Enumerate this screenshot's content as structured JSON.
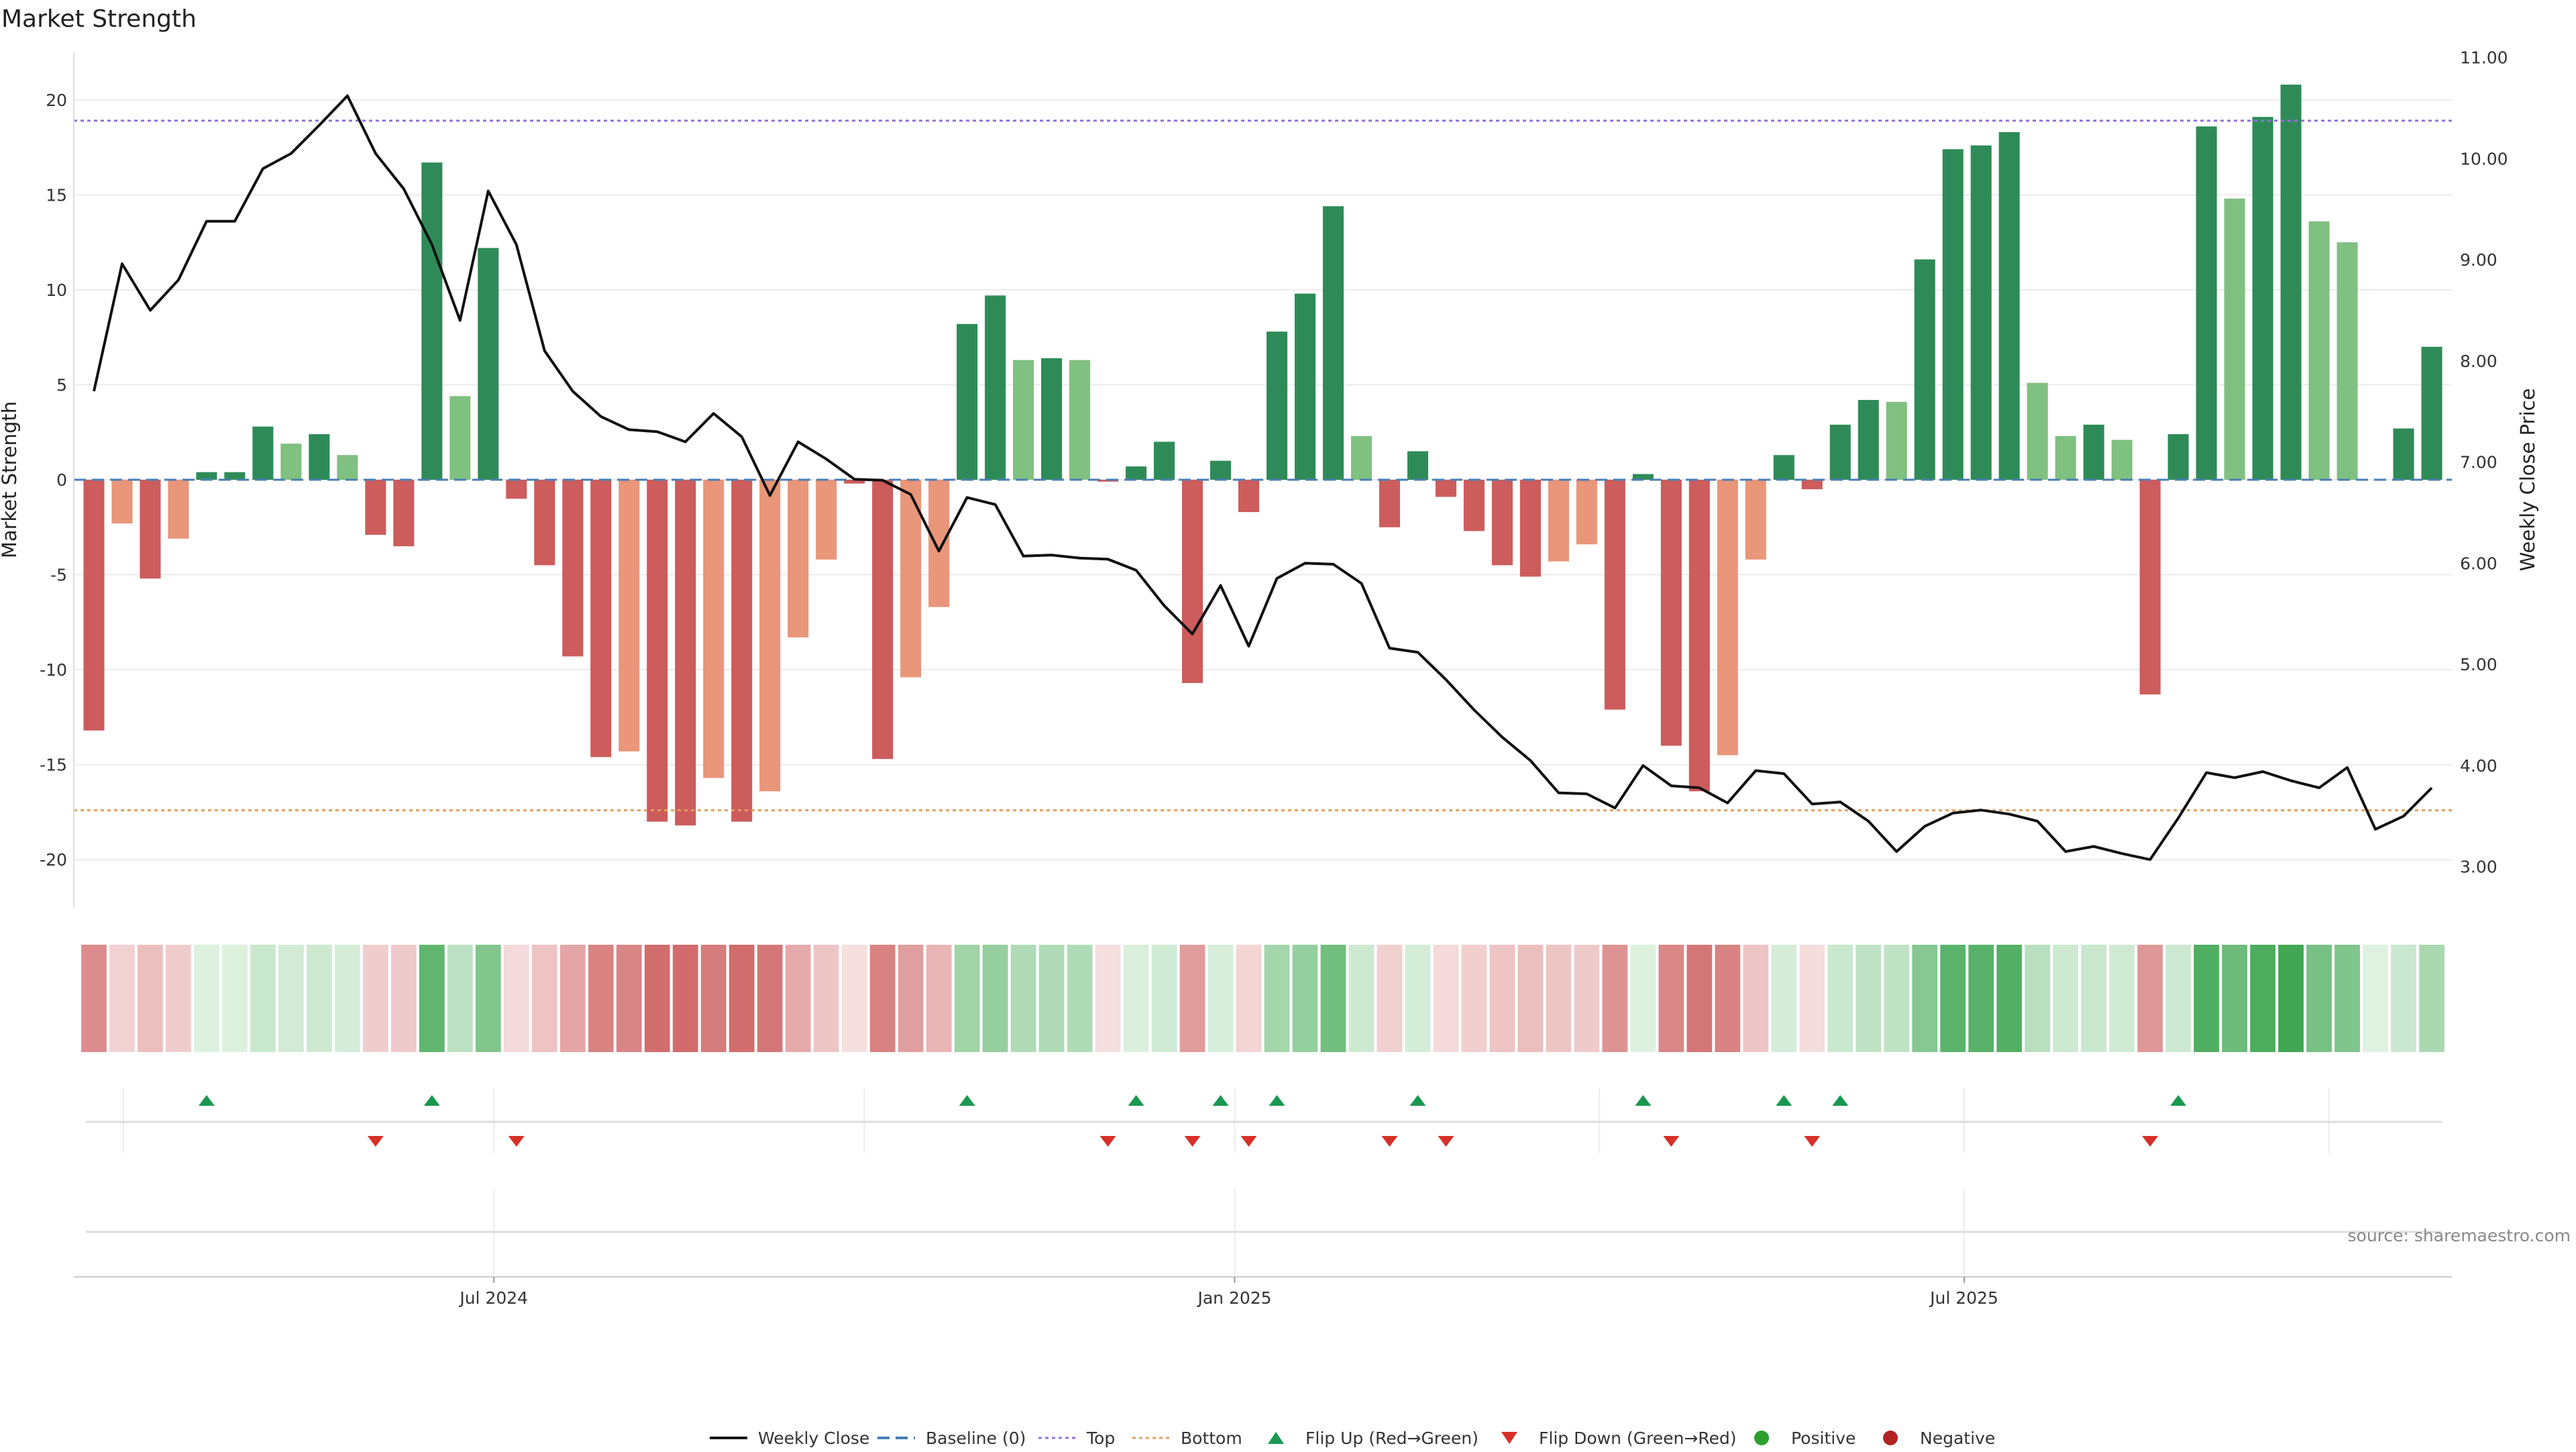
{
  "title": "Market Strength",
  "source": "source: sharemaestro.com",
  "colors": {
    "strong_green": "#2e8b57",
    "light_green": "#80c080",
    "strong_red": "#cd5c5c",
    "light_red": "#e9967a",
    "close_line": "#111111",
    "baseline": "#4a7fb5",
    "top": "#9370db",
    "bottom": "#e0a060",
    "flip_up": "#1a9850",
    "flip_down": "#d73027",
    "positive": "#2ca02c",
    "negative": "#b22222",
    "grid": "#ebebeb"
  },
  "chart_data": {
    "type": "bar",
    "title": "Market Strength",
    "ylabel_left": "Market Strength",
    "ylabel_right": "Weekly Close Price",
    "ylim_left": [
      -22.5,
      22.5
    ],
    "yticks_left": [
      -20,
      -15,
      -10,
      -5,
      0,
      5,
      10,
      15,
      20
    ],
    "ylim_right": [
      2.6,
      11.05
    ],
    "yticks_right": [
      3,
      4,
      5,
      6,
      7,
      8,
      9,
      10,
      11
    ],
    "ytick_labels_right": [
      "3.00",
      "4.00",
      "5.00",
      "6.00",
      "7.00",
      "8.00",
      "9.00",
      "10.00",
      "11.00"
    ],
    "x_tick_labels": [
      "Jul 2024",
      "Jan 2025",
      "Jul 2025"
    ],
    "x_tick_week_index": [
      14.2,
      40.5,
      66.4
    ],
    "top_line": 18.9,
    "bottom_line": -17.4,
    "baseline": 0,
    "weeks": 84,
    "strength": [
      -13.2,
      -2.3,
      -5.2,
      -3.1,
      0.4,
      0.4,
      2.8,
      1.9,
      2.4,
      1.3,
      -2.9,
      -3.5,
      16.7,
      4.4,
      12.2,
      -1.0,
      -4.5,
      -9.3,
      -14.6,
      -14.3,
      -18.0,
      -18.2,
      -15.7,
      -18.0,
      -16.4,
      -8.3,
      -4.2,
      -0.2,
      -14.7,
      -10.4,
      -6.7,
      8.2,
      9.7,
      6.3,
      6.4,
      6.3,
      -0.1,
      0.7,
      2.0,
      -10.7,
      1.0,
      -1.7,
      7.8,
      9.8,
      14.4,
      2.3,
      -2.5,
      1.5,
      -0.9,
      -2.7,
      -4.5,
      -5.1,
      -4.3,
      -3.4,
      -12.1,
      0.3,
      -14.0,
      -16.4,
      -14.5,
      -4.2,
      1.3,
      -0.5,
      2.9,
      4.2,
      4.1,
      11.6,
      17.4,
      17.6,
      18.3,
      5.1,
      2.3,
      2.9,
      2.1,
      -11.3,
      2.4,
      18.6,
      14.8,
      19.1,
      20.8,
      13.6,
      12.5,
      0,
      2.7,
      7.0
    ],
    "strong": [
      1,
      0,
      1,
      0,
      1,
      1,
      1,
      0,
      1,
      0,
      1,
      1,
      1,
      0,
      1,
      1,
      1,
      1,
      1,
      0,
      1,
      1,
      0,
      1,
      0,
      0,
      0,
      1,
      1,
      0,
      0,
      1,
      1,
      0,
      1,
      0,
      1,
      1,
      1,
      1,
      1,
      1,
      1,
      1,
      1,
      0,
      1,
      1,
      1,
      1,
      1,
      1,
      0,
      0,
      1,
      1,
      1,
      1,
      0,
      0,
      1,
      1,
      1,
      1,
      0,
      1,
      1,
      1,
      1,
      0,
      0,
      1,
      0,
      1,
      1,
      1,
      0,
      1,
      1,
      0,
      0,
      1,
      1,
      1
    ],
    "weekly_close": [
      7.7,
      8.96,
      8.5,
      8.8,
      9.38,
      9.38,
      9.9,
      10.05,
      10.33,
      10.62,
      10.05,
      9.7,
      9.15,
      8.4,
      9.68,
      9.15,
      8.1,
      7.7,
      7.45,
      7.32,
      7.3,
      7.2,
      7.48,
      7.25,
      6.67,
      7.2,
      7.03,
      6.83,
      6.82,
      6.68,
      6.12,
      6.65,
      6.58,
      6.07,
      6.08,
      6.05,
      6.04,
      5.93,
      5.58,
      5.3,
      5.78,
      5.18,
      5.85,
      6.0,
      5.99,
      5.8,
      5.16,
      5.12,
      4.85,
      4.55,
      4.28,
      4.05,
      3.73,
      3.72,
      3.58,
      4.0,
      3.8,
      3.78,
      3.63,
      3.95,
      3.92,
      3.62,
      3.64,
      3.45,
      3.15,
      3.4,
      3.53,
      3.56,
      3.52,
      3.45,
      3.15,
      3.2,
      3.13,
      3.07,
      3.48,
      3.93,
      3.88,
      3.94,
      3.85,
      3.78,
      3.98,
      3.37,
      3.5,
      3.78
    ],
    "flip_up_weeks": [
      4,
      12,
      31,
      37,
      40,
      42,
      47,
      55,
      60,
      62,
      74
    ],
    "flip_down_weeks": [
      10,
      15,
      36,
      39,
      41,
      46,
      48,
      56,
      61,
      73
    ],
    "legend": [
      "Weekly Close",
      "Baseline (0)",
      "Top",
      "Bottom",
      "Flip Up (Red→Green)",
      "Flip Down (Green→Red)",
      "Positive",
      "Negative"
    ]
  }
}
